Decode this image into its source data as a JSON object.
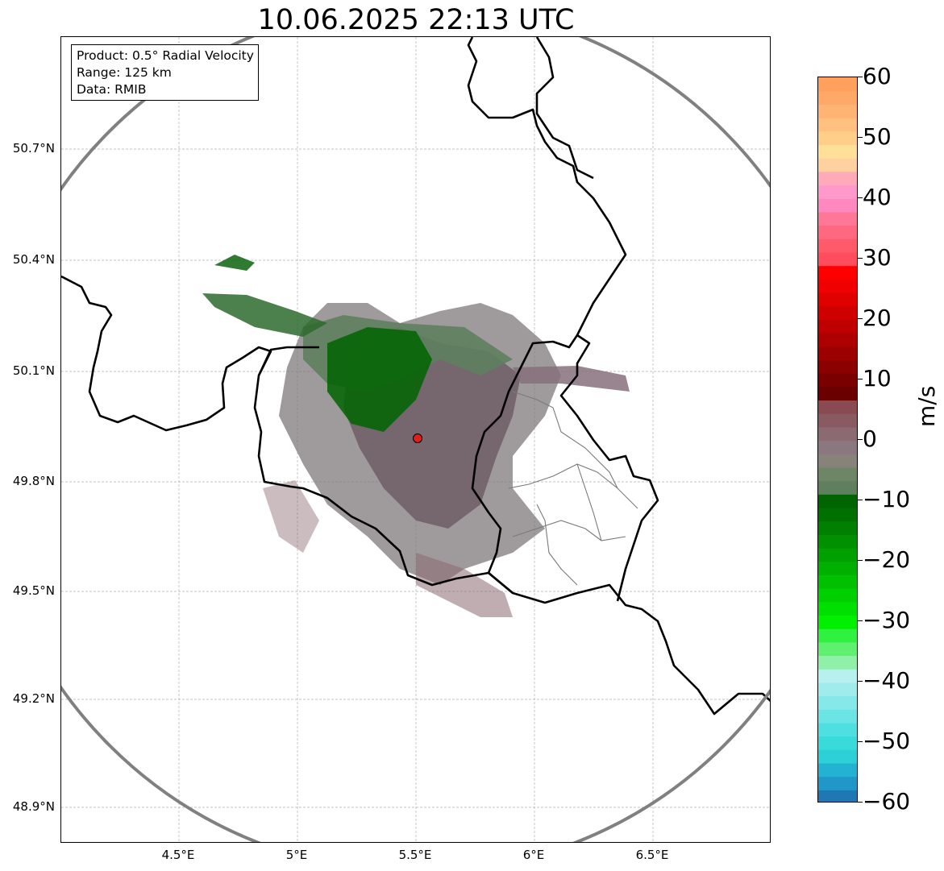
{
  "title": "10.06.2025 22:13 UTC",
  "info_box": {
    "product": "Product: 0.5° Radial Velocity",
    "range": "Range: 125 km",
    "source": "Data: RMIB"
  },
  "map": {
    "lon_ticks": [
      "4.5°E",
      "5°E",
      "5.5°E",
      "6°E",
      "6.5°E"
    ],
    "lat_ticks": [
      "50.7°N",
      "50.4°N",
      "50.1°N",
      "49.8°N",
      "49.5°N",
      "49.2°N",
      "48.9°N"
    ],
    "radar_site_color": "#e01e1e",
    "range_ring_color": "#808080",
    "border_color": "#000000",
    "gridline_color": "#b0b0b0"
  },
  "colorbar": {
    "unit": "m/s",
    "min": -60,
    "max": 60,
    "tick_labels": [
      "60",
      "50",
      "40",
      "30",
      "20",
      "10",
      "0",
      "−10",
      "−20",
      "−30",
      "−40",
      "−50",
      "−60"
    ],
    "colors_low_to_high": [
      "#1f77b4",
      "#2196c8",
      "#23b3d2",
      "#2ed0d8",
      "#38dada",
      "#4ee0e0",
      "#6ae4e4",
      "#86e8e8",
      "#a0ecec",
      "#b8f0f0",
      "#90f0a8",
      "#60f070",
      "#30f040",
      "#00f000",
      "#00e000",
      "#00d000",
      "#00c000",
      "#00b000",
      "#00a000",
      "#009000",
      "#008000",
      "#007000",
      "#006400",
      "#5f7f5f",
      "#6d8766",
      "#87827a",
      "#8a7780",
      "#8b6a72",
      "#8a5a62",
      "#8a4a52",
      "#6b0000",
      "#7a0000",
      "#8b0000",
      "#9c0000",
      "#ad0000",
      "#be0000",
      "#cf0000",
      "#e00000",
      "#f00000",
      "#ff0000",
      "#ff4d5d",
      "#ff5a6a",
      "#ff6880",
      "#ff7796",
      "#ff88c0",
      "#ff99cc",
      "#ffaab8",
      "#ffd0a0",
      "#ffe098",
      "#ffcf8a",
      "#ffc080",
      "#ffb474",
      "#ffa868",
      "#ffa05c"
    ]
  }
}
